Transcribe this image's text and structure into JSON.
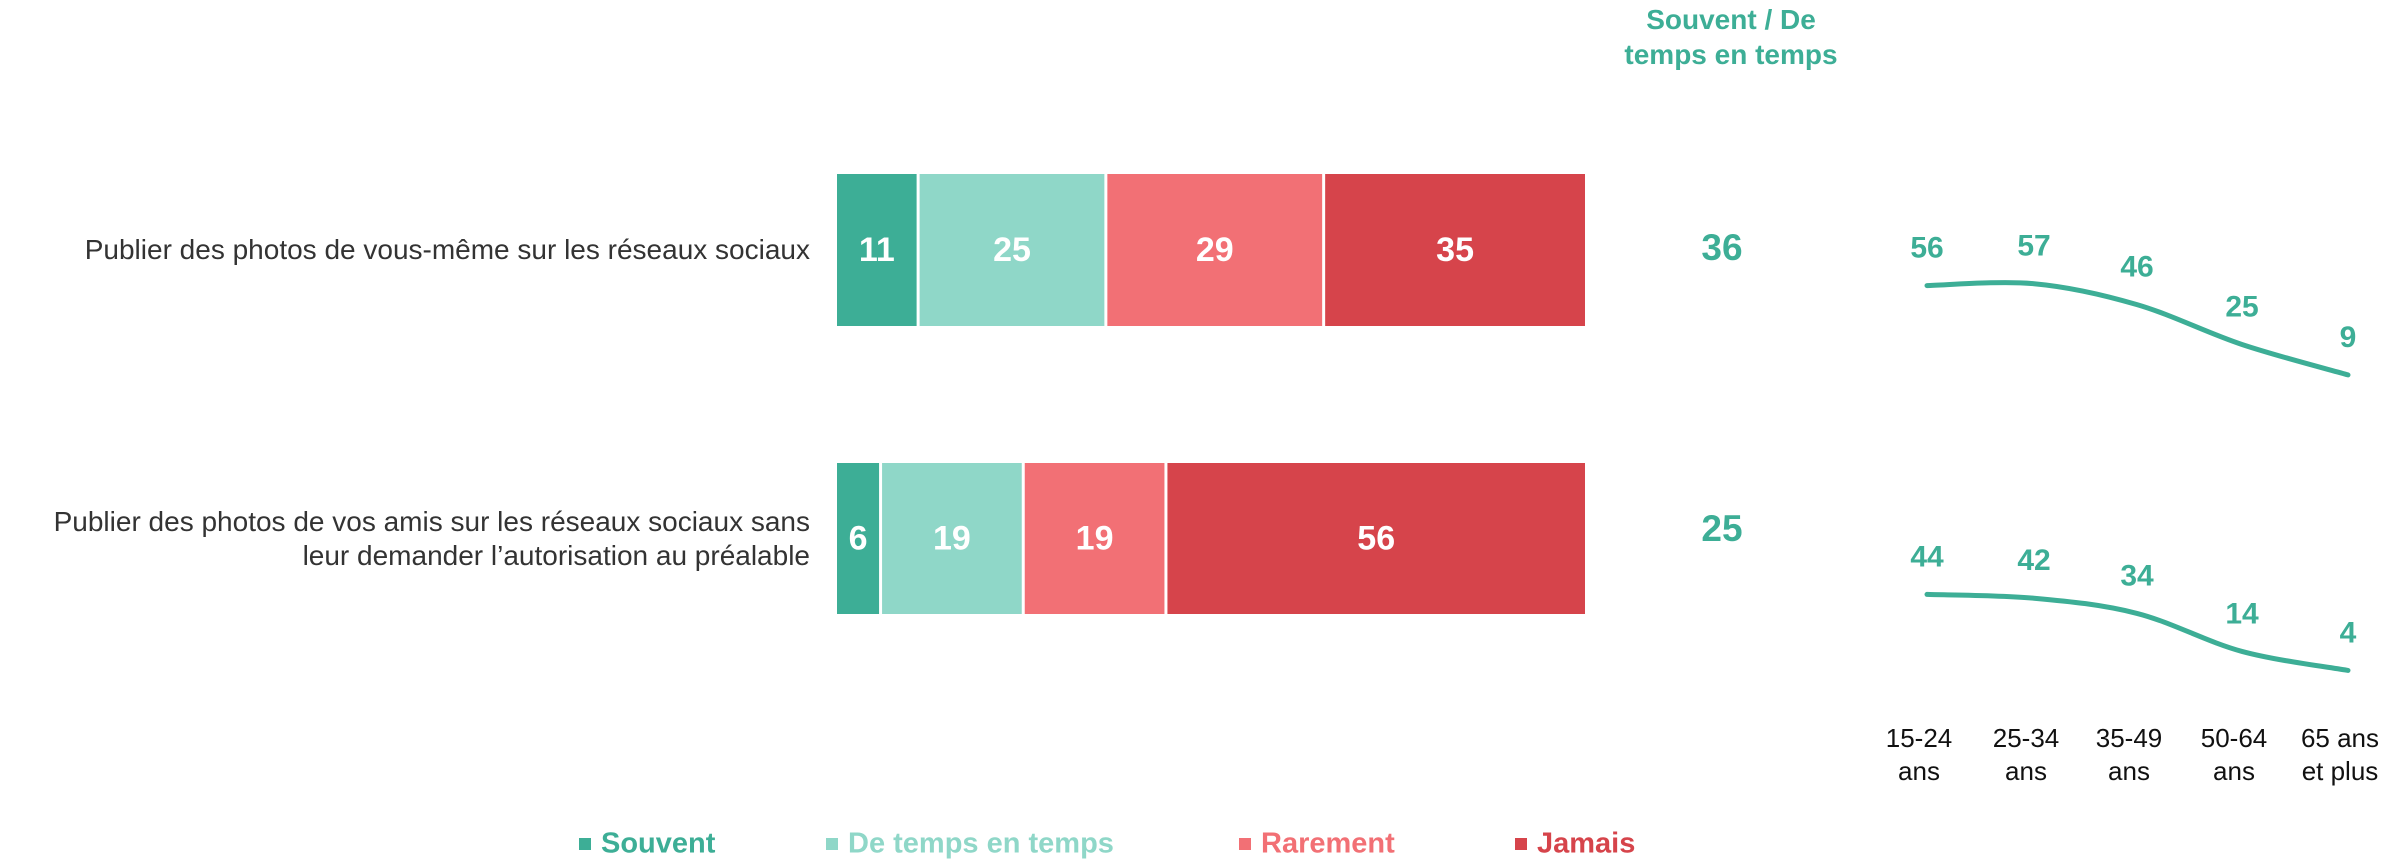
{
  "chart_data": [
    {
      "type": "bar",
      "orientation": "horizontal",
      "stacked": true,
      "legend": "bottom",
      "xlim": [
        0,
        100
      ],
      "categories": [
        "Publier des photos de vous-même sur les réseaux sociaux",
        "Publier des photos de vos amis sur les réseaux sociaux sans leur demander l’autorisation au préalable"
      ],
      "series": [
        {
          "name": "Souvent",
          "color": "#3dae96",
          "values": [
            11,
            6
          ]
        },
        {
          "name": "De temps en temps",
          "color": "#8fd7c8",
          "values": [
            25,
            19
          ]
        },
        {
          "name": "Rarement",
          "color": "#f27075",
          "values": [
            29,
            19
          ]
        },
        {
          "name": "Jamais",
          "color": "#d6444b",
          "values": [
            35,
            56
          ]
        }
      ]
    },
    {
      "type": "summary",
      "title": "Souvent / De temps en temps",
      "color": "#3dae96",
      "values": [
        36,
        25
      ]
    },
    {
      "type": "line",
      "color": "#3dae96",
      "ylim": [
        0,
        60
      ],
      "categories": [
        "15-24 ans",
        "25-34 ans",
        "35-49 ans",
        "50-64 ans",
        "65 ans et plus"
      ],
      "series": [
        {
          "color": "#3dae96",
          "values": [
            56,
            57,
            46,
            25,
            9
          ]
        },
        {
          "color": "#3dae96",
          "values": [
            44,
            42,
            34,
            14,
            4
          ]
        }
      ]
    }
  ]
}
